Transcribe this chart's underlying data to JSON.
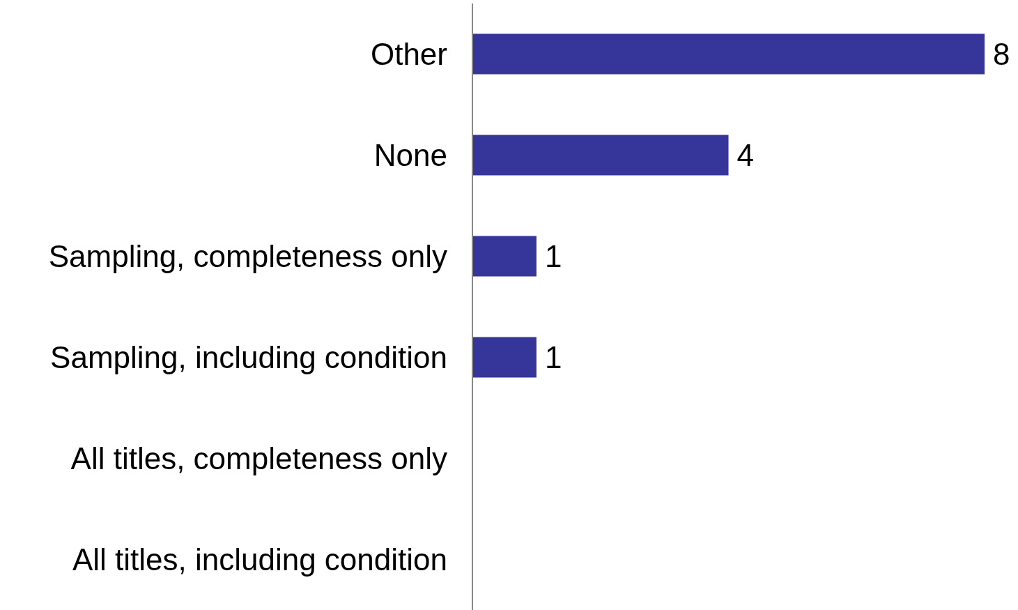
{
  "chart_data": {
    "type": "bar",
    "orientation": "horizontal",
    "categories": [
      "Other",
      "None",
      "Sampling, completeness only",
      "Sampling, including condition",
      "All titles, completeness only",
      "All titles, including condition"
    ],
    "values": [
      8,
      4,
      1,
      1,
      0,
      0
    ],
    "value_labels": [
      "8",
      "4",
      "1",
      "1",
      null,
      null
    ],
    "color": "#35359a",
    "tick_labels": "y"
  }
}
